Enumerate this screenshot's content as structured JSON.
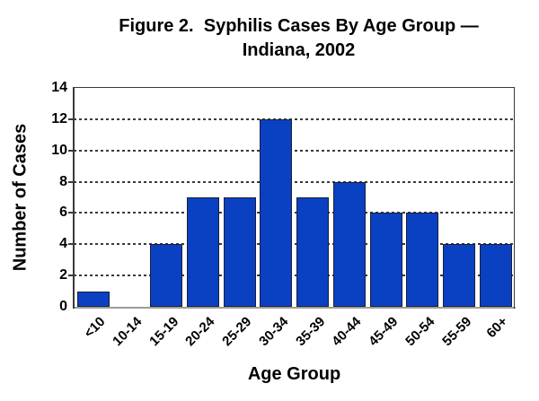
{
  "figure": {
    "title_line1": "Figure 2.  Syphilis Cases By Age Group —",
    "title_line2": "Indiana, 2002"
  },
  "chart_data": {
    "type": "bar",
    "title": "Figure 2. Syphilis Cases By Age Group — Indiana, 2002",
    "categories": [
      "<10",
      "10-14",
      "15-19",
      "20-24",
      "25-29",
      "30-34",
      "35-39",
      "40-44",
      "45-49",
      "50-54",
      "55-59",
      "60+"
    ],
    "values": [
      1,
      0,
      4,
      7,
      7,
      12,
      7,
      8,
      6,
      6,
      4,
      4
    ],
    "xlabel": "Age Group",
    "ylabel": "Number of Cases",
    "ylim": [
      0,
      14
    ],
    "yticks": [
      0,
      2,
      4,
      6,
      8,
      10,
      12,
      14
    ],
    "gridline_values": [
      2,
      4,
      6,
      8,
      10,
      12
    ],
    "grid": "horizontal-dashed",
    "legend": "none",
    "background_color": "#ffffff",
    "bar_color": "#0a41c3",
    "bar_border_color": "#1b1f33",
    "axis_color": "#3a3a3a",
    "x_axis_line_color": "#9c9c9c"
  }
}
